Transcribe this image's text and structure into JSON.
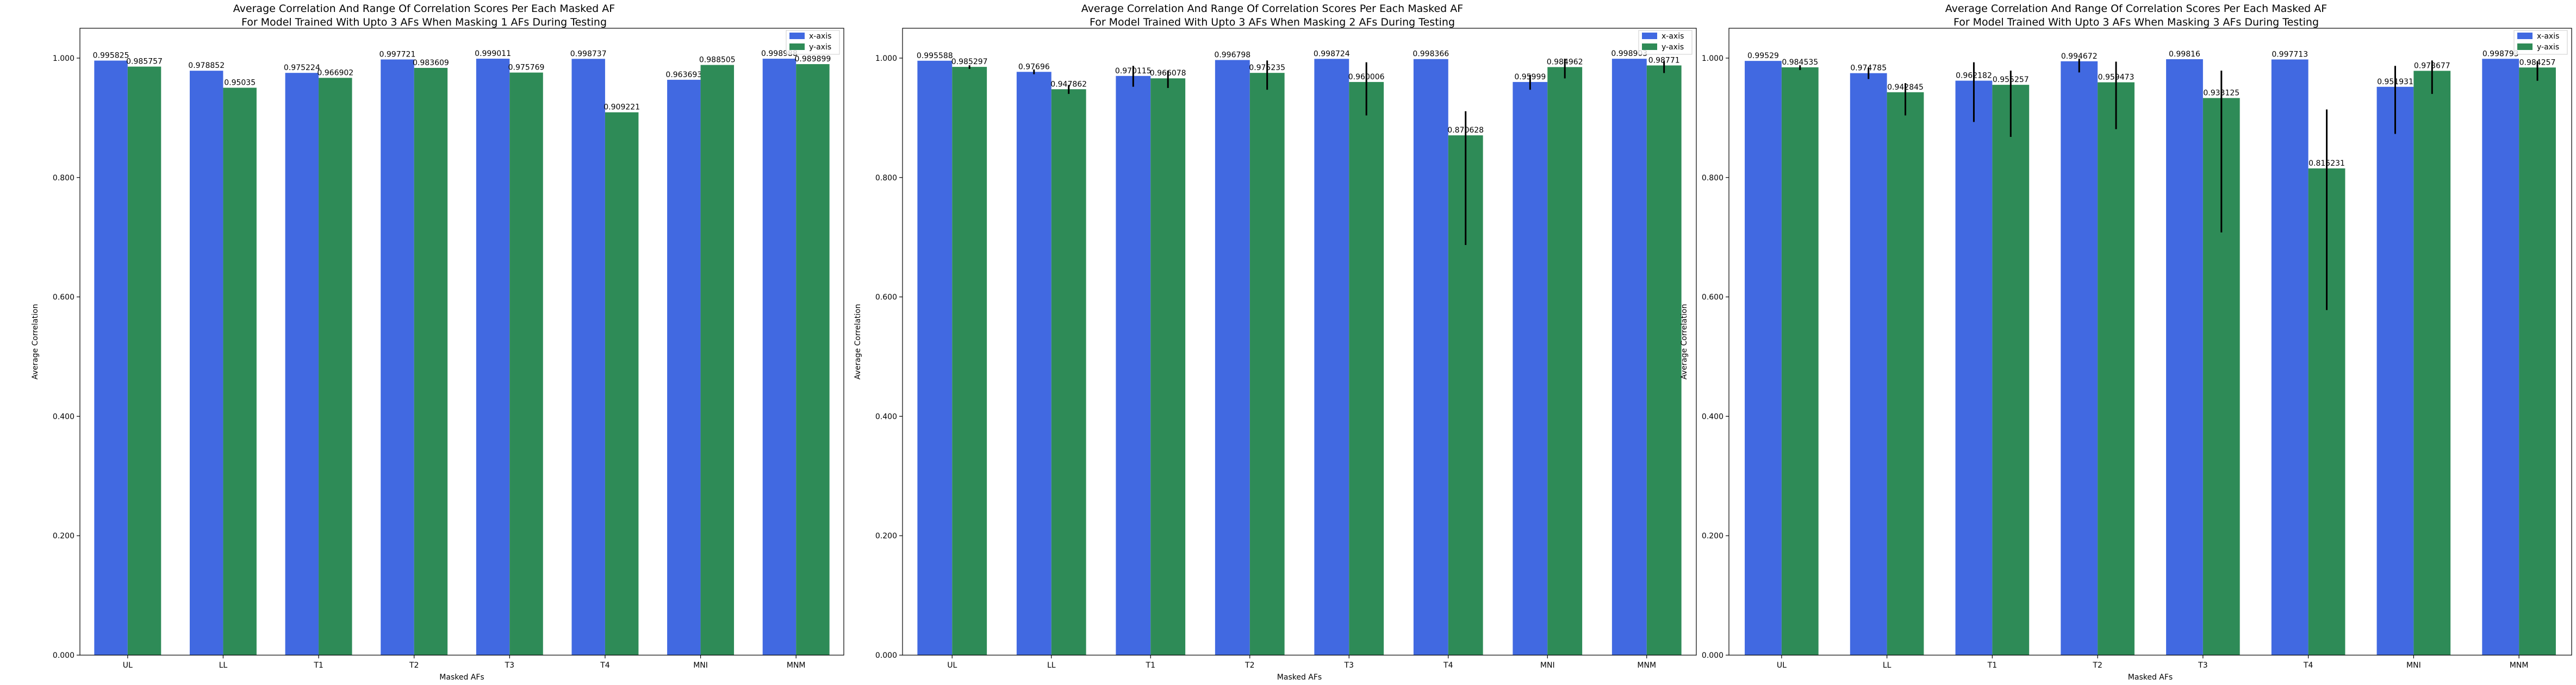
{
  "colors": {
    "x_axis_bar": "#4169e1",
    "y_axis_bar": "#2e8b57",
    "error_bar": "#000000"
  },
  "chart_data": [
    {
      "type": "bar",
      "title": "Average Correlation And Range Of Correlation Scores Per Each Masked AF\nFor Model Trained With Upto 3 AFs When Masking 1 AFs During Testing",
      "xlabel": "Masked AFs",
      "ylabel": "Average Correlation",
      "ylim": [
        0,
        1.05
      ],
      "yticks": [
        "0.000",
        "0.200",
        "0.400",
        "0.600",
        "0.800",
        "1.000"
      ],
      "legend": "top-right",
      "categories": [
        "UL",
        "LL",
        "T1",
        "T2",
        "T3",
        "T4",
        "MNI",
        "MNM"
      ],
      "series": [
        {
          "name": "x-axis",
          "values": [
            0.995825,
            0.978852,
            0.975224,
            0.997721,
            0.999011,
            0.998737,
            0.963693,
            0.998988
          ],
          "labels": [
            "0.995825",
            "0.978852",
            "0.975224",
            "0.997721",
            "0.999011",
            "0.998737",
            "0.963693",
            "0.998988"
          ],
          "err_low": [
            0.995825,
            0.978852,
            0.975224,
            0.997721,
            0.999011,
            0.998737,
            0.963693,
            0.998988
          ],
          "err_high": [
            0.995825,
            0.978852,
            0.975224,
            0.997721,
            0.999011,
            0.998737,
            0.963693,
            0.998988
          ]
        },
        {
          "name": "y-axis",
          "values": [
            0.985757,
            0.95035,
            0.966902,
            0.983609,
            0.975769,
            0.909221,
            0.988505,
            0.989899
          ],
          "labels": [
            "0.985757",
            "0.95035",
            "0.966902",
            "0.983609",
            "0.975769",
            "0.909221",
            "0.988505",
            "0.989899"
          ],
          "err_low": [
            0.985757,
            0.95035,
            0.966902,
            0.983609,
            0.975769,
            0.909221,
            0.988505,
            0.989899
          ],
          "err_high": [
            0.985757,
            0.95035,
            0.966902,
            0.983609,
            0.975769,
            0.909221,
            0.988505,
            0.989899
          ]
        }
      ]
    },
    {
      "type": "bar",
      "title": "Average Correlation And Range Of Correlation Scores Per Each Masked AF\nFor Model Trained With Upto 3 AFs When Masking 2 AFs During Testing",
      "xlabel": "Masked AFs",
      "ylabel": "Average Correlation",
      "ylim": [
        0,
        1.05
      ],
      "yticks": [
        "0.000",
        "0.200",
        "0.400",
        "0.600",
        "0.800",
        "1.000"
      ],
      "legend": "top-right",
      "categories": [
        "UL",
        "LL",
        "T1",
        "T2",
        "T3",
        "T4",
        "MNI",
        "MNM"
      ],
      "series": [
        {
          "name": "x-axis",
          "values": [
            0.995588,
            0.97696,
            0.970115,
            0.996798,
            0.998724,
            0.998366,
            0.95999,
            0.998903
          ],
          "labels": [
            "0.995588",
            "0.97696",
            "0.970115",
            "0.996798",
            "0.998724",
            "0.998366",
            "0.95999",
            "0.998903"
          ],
          "err_low": [
            0.995588,
            0.973,
            0.952,
            0.996798,
            0.998724,
            0.998366,
            0.947,
            0.998903
          ],
          "err_high": [
            0.995588,
            0.981,
            0.987,
            0.996798,
            0.998724,
            0.998366,
            0.972,
            0.998903
          ]
        },
        {
          "name": "y-axis",
          "values": [
            0.985297,
            0.947862,
            0.966078,
            0.975235,
            0.960006,
            0.870628,
            0.984962,
            0.98771
          ],
          "labels": [
            "0.985297",
            "0.947862",
            "0.966078",
            "0.975235",
            "0.960006",
            "0.870628",
            "0.984962",
            "0.98771"
          ],
          "err_low": [
            0.982,
            0.94,
            0.95,
            0.947,
            0.904,
            0.687,
            0.966,
            0.975
          ],
          "err_high": [
            0.988,
            0.955,
            0.979,
            0.996,
            0.993,
            0.911,
            0.999,
            0.995
          ]
        }
      ]
    },
    {
      "type": "bar",
      "title": "Average Correlation And Range Of Correlation Scores Per Each Masked AF\nFor Model Trained With Upto 3 AFs When Masking 3 AFs During Testing",
      "xlabel": "Masked AFs",
      "ylabel": "Average Correlation",
      "ylim": [
        0,
        1.05
      ],
      "yticks": [
        "0.000",
        "0.200",
        "0.400",
        "0.600",
        "0.800",
        "1.000"
      ],
      "legend": "top-right",
      "categories": [
        "UL",
        "LL",
        "T1",
        "T2",
        "T3",
        "T4",
        "MNI",
        "MNM"
      ],
      "series": [
        {
          "name": "x-axis",
          "values": [
            0.99529,
            0.974785,
            0.962182,
            0.994672,
            0.99816,
            0.997713,
            0.951931,
            0.998793
          ],
          "labels": [
            "0.99529",
            "0.974785",
            "0.962182",
            "0.994672",
            "0.99816",
            "0.997713",
            "0.951931",
            "0.998793"
          ],
          "err_low": [
            0.99529,
            0.965,
            0.893,
            0.976,
            0.99816,
            0.997713,
            0.873,
            0.998793
          ],
          "err_high": [
            0.99529,
            0.984,
            0.993,
            0.999,
            0.99816,
            0.997713,
            0.987,
            0.998793
          ]
        },
        {
          "name": "y-axis",
          "values": [
            0.984535,
            0.942845,
            0.955257,
            0.959473,
            0.933125,
            0.815231,
            0.978677,
            0.984257
          ],
          "labels": [
            "0.984535",
            "0.942845",
            "0.955257",
            "0.959473",
            "0.933125",
            "0.815231",
            "0.978677",
            "0.984257"
          ],
          "err_low": [
            0.98,
            0.904,
            0.868,
            0.881,
            0.708,
            0.578,
            0.94,
            0.962
          ],
          "err_high": [
            0.988,
            0.958,
            0.979,
            0.994,
            0.979,
            0.914,
            0.996,
            0.995
          ]
        }
      ]
    }
  ]
}
